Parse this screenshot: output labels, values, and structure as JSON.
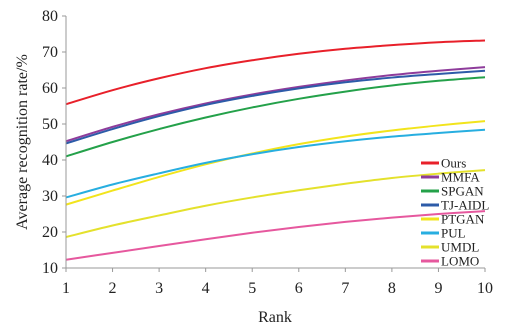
{
  "chart_data": {
    "type": "line",
    "xlabel": "Rank",
    "ylabel": "Average recognition rate/%",
    "xlim": [
      1,
      10
    ],
    "ylim": [
      10,
      80
    ],
    "x_ticks": [
      "1",
      "2",
      "3",
      "4",
      "5",
      "6",
      "7",
      "8",
      "9",
      "10"
    ],
    "y_ticks": [
      "10",
      "20",
      "30",
      "40",
      "50",
      "60",
      "70",
      "80"
    ],
    "grid": false,
    "legend_position": "bottom-right",
    "x": [
      1,
      2,
      3,
      4,
      5,
      6,
      7,
      8,
      9,
      10
    ],
    "series": [
      {
        "name": "Ours",
        "color": "#e8202a",
        "values": [
          55.5,
          59.4,
          62.7,
          65.5,
          67.7,
          69.5,
          70.9,
          71.9,
          72.7,
          73.2
        ]
      },
      {
        "name": "MMFA",
        "color": "#8e3c9b",
        "values": [
          45.2,
          49.2,
          52.7,
          55.7,
          58.2,
          60.3,
          62.1,
          63.6,
          64.8,
          65.8
        ]
      },
      {
        "name": "SPGAN",
        "color": "#24a14a",
        "values": [
          41.0,
          45.0,
          48.6,
          51.8,
          54.6,
          57.0,
          59.0,
          60.7,
          62.0,
          63.0
        ]
      },
      {
        "name": "TJ-AIDL",
        "color": "#2d5ba8",
        "values": [
          44.6,
          48.6,
          52.2,
          55.3,
          57.8,
          59.9,
          61.6,
          62.9,
          63.9,
          64.8
        ]
      },
      {
        "name": "PTGAN",
        "color": "#f2e41c",
        "values": [
          27.6,
          31.5,
          35.3,
          38.8,
          41.8,
          44.4,
          46.5,
          48.2,
          49.6,
          50.8
        ]
      },
      {
        "name": "PUL",
        "color": "#27aee0",
        "values": [
          29.6,
          33.2,
          36.3,
          39.2,
          41.6,
          43.6,
          45.2,
          46.5,
          47.5,
          48.4
        ]
      },
      {
        "name": "UMDL",
        "color": "#e4e12c",
        "values": [
          18.6,
          21.8,
          24.6,
          27.3,
          29.6,
          31.6,
          33.4,
          35.0,
          36.2,
          37.2
        ]
      },
      {
        "name": "LOMO",
        "color": "#e6589e",
        "values": [
          12.3,
          14.2,
          16.1,
          18.0,
          19.8,
          21.4,
          22.8,
          24.0,
          25.0,
          25.8
        ]
      }
    ]
  }
}
